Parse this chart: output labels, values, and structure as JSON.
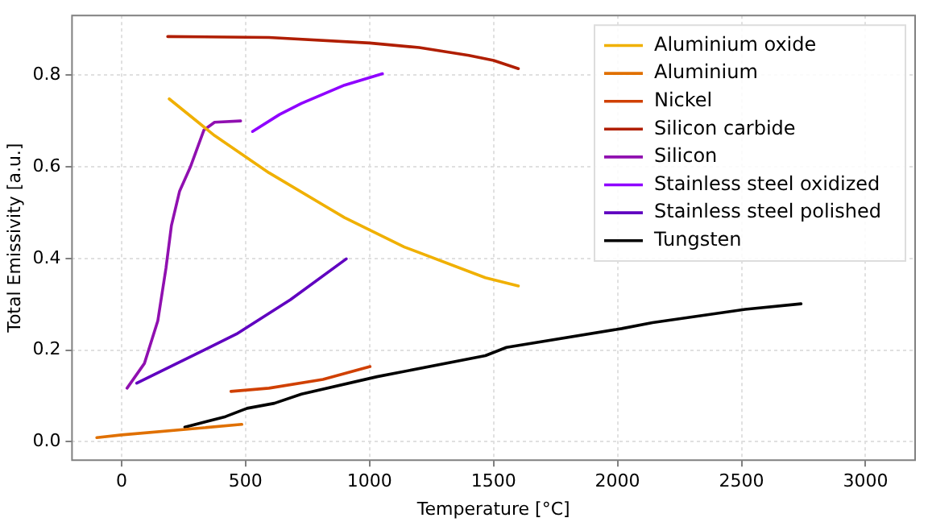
{
  "chart_data": {
    "type": "line",
    "xlabel": "Temperature [°C]",
    "ylabel": "Total Emissivity [a.u.]",
    "xlim": [
      -200,
      3200
    ],
    "xticks": [
      0,
      500,
      1000,
      1500,
      2000,
      2500,
      3000
    ],
    "ylim": [
      -0.04,
      0.93
    ],
    "yticks": [
      {
        "value": 0,
        "label": "0.0"
      },
      0.2,
      0.4,
      0.6,
      0.8
    ],
    "grid": true,
    "legend": "top right",
    "line_style": "solid",
    "marker": "none",
    "series": [
      {
        "name": "Aluminium oxide",
        "color": "#f0b000",
        "x": [
          192,
          375,
          594,
          899,
          1140,
          1467,
          1600
        ],
        "values": [
          0.748,
          0.668,
          0.587,
          0.489,
          0.425,
          0.358,
          0.34
        ]
      },
      {
        "name": "Aluminium",
        "color": "#e07000",
        "x": [
          -100,
          0,
          485
        ],
        "values": [
          0.009,
          0.015,
          0.038
        ]
      },
      {
        "name": "Nickel",
        "color": "#d04000",
        "x": [
          441,
          594,
          812,
          1002
        ],
        "values": [
          0.11,
          0.117,
          0.136,
          0.164
        ]
      },
      {
        "name": "Silicon carbide",
        "color": "#b01e00",
        "x": [
          186,
          594,
          1000,
          1200,
          1400,
          1500,
          1600
        ],
        "values": [
          0.884,
          0.882,
          0.87,
          0.86,
          0.843,
          0.832,
          0.814
        ]
      },
      {
        "name": "Silicon",
        "color": "#9010b0",
        "x": [
          22,
          92,
          146,
          179,
          201,
          234,
          277,
          332,
          375,
          480
        ],
        "values": [
          0.117,
          0.171,
          0.264,
          0.379,
          0.472,
          0.547,
          0.599,
          0.68,
          0.697,
          0.7
        ]
      },
      {
        "name": "Stainless steel oxidized",
        "color": "#8f00ff",
        "x": [
          528,
          637,
          725,
          899,
          1052
        ],
        "values": [
          0.677,
          0.714,
          0.738,
          0.778,
          0.803
        ]
      },
      {
        "name": "Stainless steel polished",
        "color": "#6000c0",
        "x": [
          61,
          223,
          463,
          681,
          906
        ],
        "values": [
          0.128,
          0.171,
          0.235,
          0.31,
          0.399
        ]
      },
      {
        "name": "Tungsten",
        "color": "#000000",
        "x": [
          255,
          419,
          506,
          616,
          725,
          1030,
          1467,
          1552,
          2017,
          2141,
          2515,
          2740
        ],
        "values": [
          0.032,
          0.055,
          0.073,
          0.084,
          0.104,
          0.142,
          0.188,
          0.206,
          0.247,
          0.26,
          0.289,
          0.301
        ]
      }
    ]
  }
}
